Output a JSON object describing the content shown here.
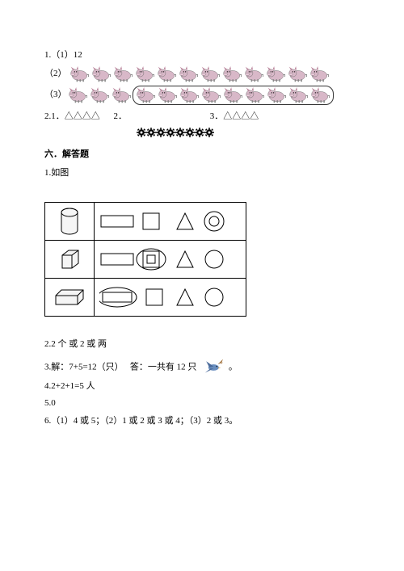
{
  "q1": {
    "line1": "1.（1）12",
    "label2": "（2）",
    "label3": "（3）",
    "pigs_row2_count": 12,
    "pigs_row3_leading": 3,
    "pigs_row3_circled": 9,
    "pig_colors": {
      "body": "#d8b8c8",
      "ear": "#b88098",
      "outline": "#555",
      "snout": "#e8c8d8",
      "foot": "#888"
    }
  },
  "q2": {
    "prefix": "2.1．",
    "triangles1": "△△△△",
    "mid": "2．",
    "triangles3_label": "3．",
    "triangles3": "△△△△",
    "gear_count": 8,
    "gear_color": "#000000"
  },
  "section6": {
    "title": "六．解答题",
    "q1_label": "1.如图",
    "table": {
      "row1": {
        "solid": "cylinder",
        "shapes": [
          "rect",
          "square",
          "triangle",
          "target"
        ]
      },
      "row2": {
        "solid": "cube",
        "shapes": [
          "rect",
          "square-in-square",
          "triangle",
          "circle"
        ],
        "circled_index": 1
      },
      "row3": {
        "solid": "prism",
        "shapes": [
          "rect",
          "square",
          "triangle",
          "circle"
        ],
        "circled_index": 0
      },
      "stroke": "#000000",
      "fill_light": "#f5f5f5"
    },
    "q2": "2.2 个 或 2 或 两",
    "q3_pre": "3.解：7+5=12（只）　 答：一共有 12 只",
    "q3_post": "。",
    "bird_colors": {
      "body": "#6b8fbf",
      "wing": "#4a6a9a",
      "beak": "#d9a040",
      "tail": "#a0703a"
    },
    "q4": "4.2+2+1=5 人",
    "q5": "5.0",
    "q6": "6.（1）4 或 5；（2）1 或 2 或 3 或 4；（3）2 或 3。"
  }
}
